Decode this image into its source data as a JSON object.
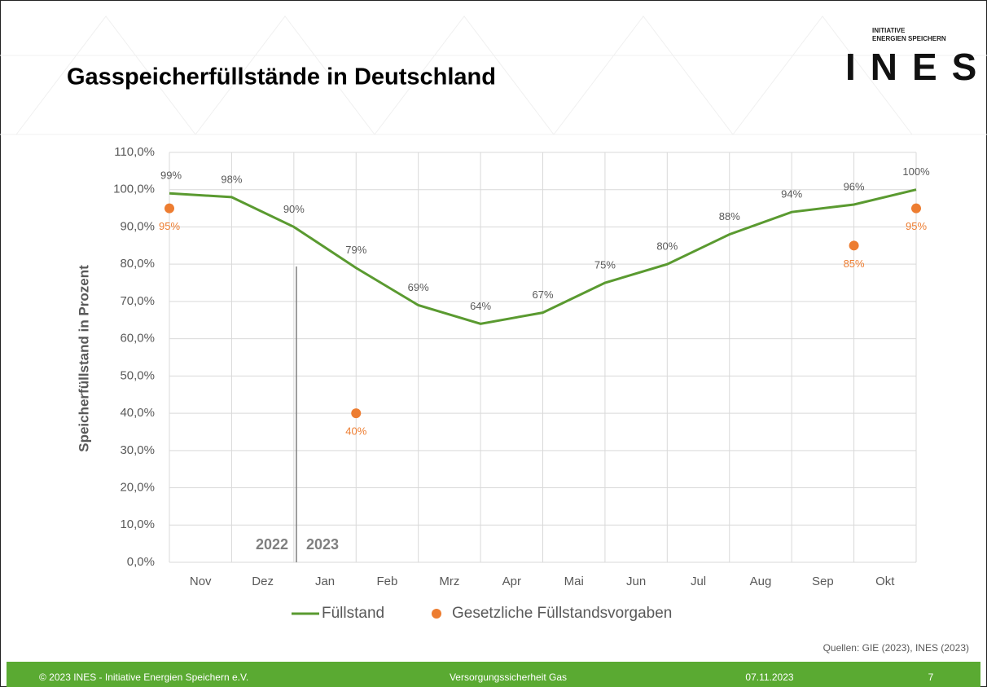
{
  "logo": {
    "line1": "INITIATIVE",
    "line2": "ENERGIEN SPEICHERN",
    "name": "INES"
  },
  "footer": [
    "© 2023 INES  - Initiative Energien Speichern e.V.",
    "Versorgungssicherheit Gas",
    "07.11.2023",
    "7"
  ],
  "chart_data": {
    "type": "line",
    "title": "Gasspeicherfüllstände in Deutschland",
    "y_axis_label": "Speicherfüllstand in Prozent",
    "categories": [
      "Nov",
      "Dez",
      "Jan",
      "Feb",
      "Mrz",
      "Apr",
      "Mai",
      "Jun",
      "Jul",
      "Aug",
      "Sep",
      "Okt"
    ],
    "x": [
      0,
      1,
      2,
      3,
      4,
      5,
      6,
      7,
      8,
      9,
      10,
      11,
      12
    ],
    "xlim": [
      0,
      12
    ],
    "series": [
      {
        "name": "Füllstand",
        "color": "#5a9a30",
        "values": [
          99,
          98,
          90,
          79,
          69,
          64,
          67,
          75,
          80,
          88,
          94,
          96,
          100
        ],
        "value_labels": [
          "99%",
          "98%",
          "90%",
          "79%",
          "69%",
          "64%",
          "67%",
          "75%",
          "80%",
          "88%",
          "94%",
          "96%",
          "100%"
        ]
      },
      {
        "name": "Gesetzliche Füllstandsvorgaben",
        "type": "scatter",
        "color": "#ed7d31",
        "x": [
          0,
          3,
          11,
          12
        ],
        "values": [
          95,
          40,
          85,
          95
        ],
        "value_labels": [
          "95%",
          "40%",
          "85%",
          "95%"
        ]
      }
    ],
    "ylim": [
      0,
      110
    ],
    "yticks": [
      {
        "value": 0,
        "label": "0,0%"
      },
      {
        "value": 10,
        "label": "10,0%"
      },
      {
        "value": 20,
        "label": "20,0%"
      },
      {
        "value": 30,
        "label": "30,0%"
      },
      {
        "value": 40,
        "label": "40,0%"
      },
      {
        "value": 50,
        "label": "50,0%"
      },
      {
        "value": 60,
        "label": "60,0%"
      },
      {
        "value": 70,
        "label": "70,0%"
      },
      {
        "value": 80,
        "label": "80,0%"
      },
      {
        "value": 90,
        "label": "90,0%"
      },
      {
        "value": 100,
        "label": "100,0%"
      },
      {
        "value": 110,
        "label": "110,0%"
      }
    ],
    "grid": true,
    "annotations": [
      "2022",
      "2023"
    ],
    "source": "Quellen: GIE (2023), INES (2023)"
  }
}
